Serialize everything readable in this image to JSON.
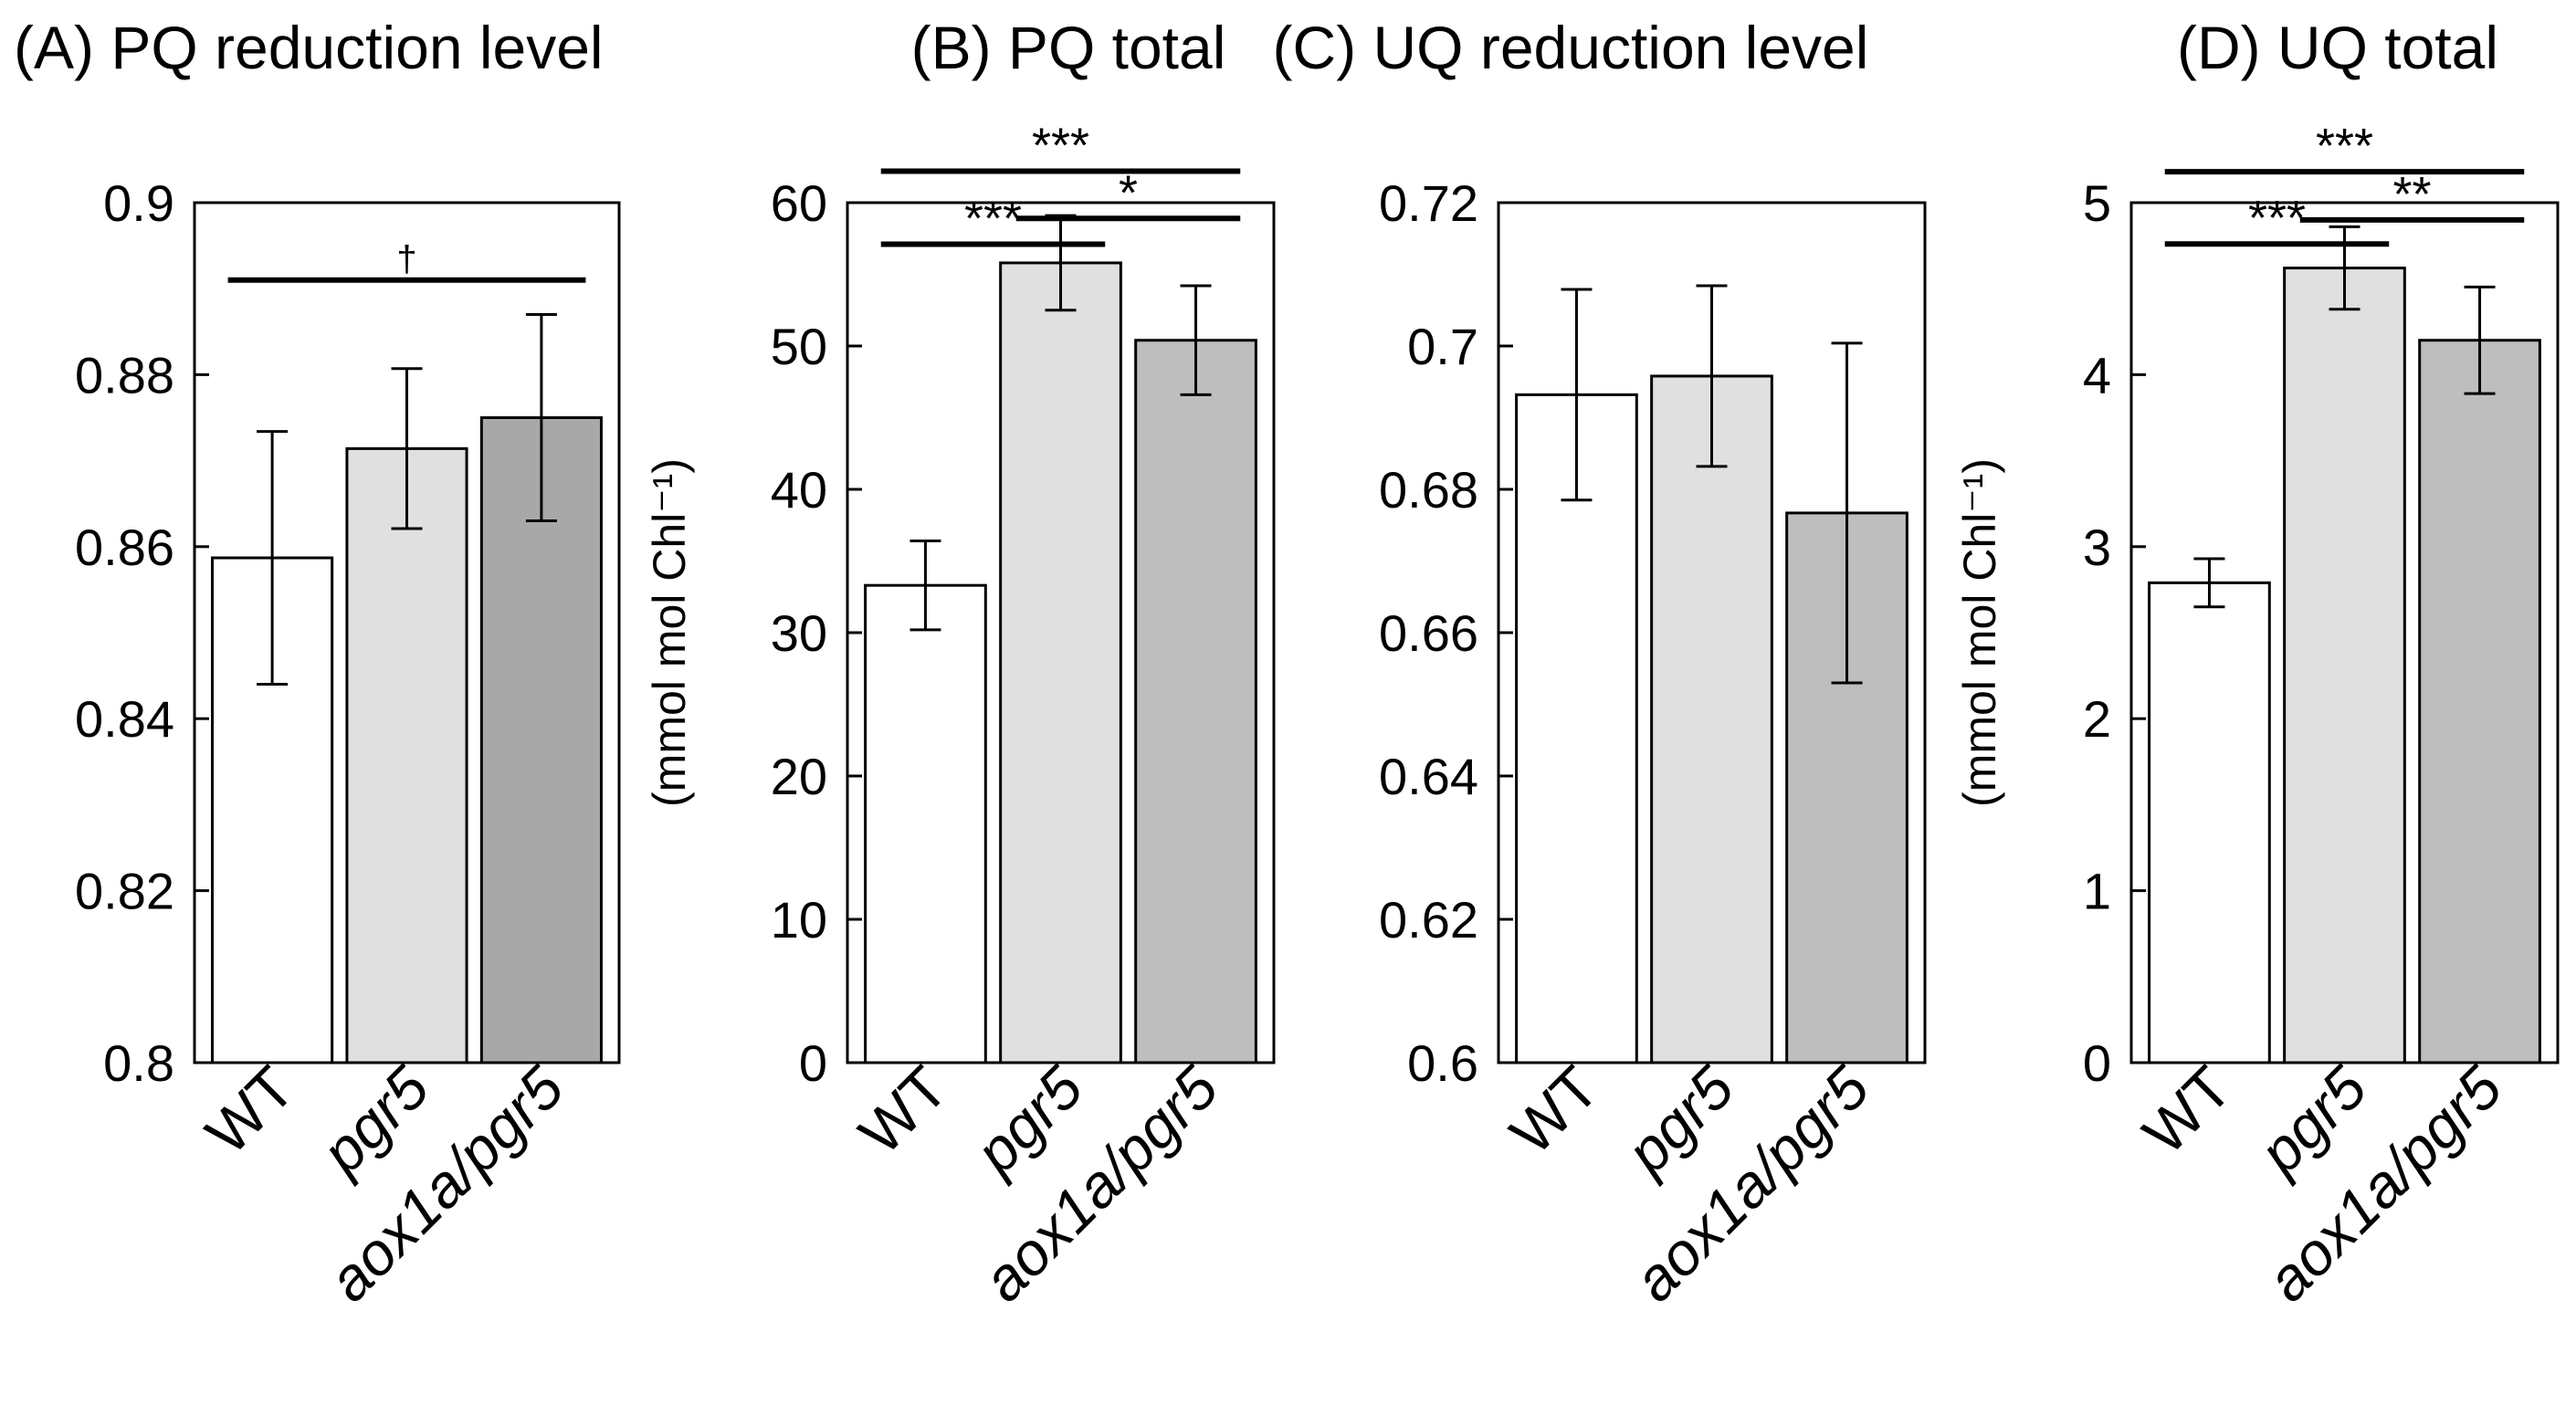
{
  "figure": {
    "background": "#ffffff",
    "bar_stroke": "#000000"
  },
  "chart_data": [
    {
      "id": "A",
      "type": "bar",
      "title": "(A) PQ reduction level",
      "ylabel": "",
      "ylim": [
        0.8,
        0.9
      ],
      "yticks": [
        0.8,
        0.82,
        0.84,
        0.86,
        0.88,
        0.9
      ],
      "ytick_labels": [
        "0.8",
        "0.82",
        "0.84",
        "0.86",
        "0.88",
        "0.9"
      ],
      "categories": [
        "WT",
        "pgr5",
        "aox1a/pgr5"
      ],
      "category_italic": [
        false,
        true,
        true
      ],
      "values": [
        0.8587,
        0.8714,
        0.875
      ],
      "errors": [
        0.0147,
        0.0093,
        0.012
      ],
      "colors": [
        "#ffffff",
        "#e0e0e0",
        "#a8a8a8"
      ],
      "significance": [
        {
          "from": 0,
          "to": 2,
          "label": "†",
          "y": 0.891
        }
      ]
    },
    {
      "id": "B",
      "type": "bar",
      "title": "(B) PQ total",
      "ylabel": "(mmol mol Chl⁻¹)",
      "ylim": [
        0,
        60
      ],
      "yticks": [
        0,
        10,
        20,
        30,
        40,
        50,
        60
      ],
      "ytick_labels": [
        "0",
        "10",
        "20",
        "30",
        "40",
        "50",
        "60"
      ],
      "categories": [
        "WT",
        "pgr5",
        "aox1a/pgr5"
      ],
      "category_italic": [
        false,
        true,
        true
      ],
      "values": [
        33.3,
        55.8,
        50.4
      ],
      "errors": [
        3.1,
        3.3,
        3.8
      ],
      "colors": [
        "#ffffff",
        "#e0e0e0",
        "#bebebe"
      ],
      "significance": [
        {
          "from": 0,
          "to": 1,
          "label": "***",
          "y": 57.1
        },
        {
          "from": 1,
          "to": 2,
          "label": "*",
          "y": 58.9
        },
        {
          "from": 0,
          "to": 2,
          "label": "***",
          "y": 62.2
        }
      ]
    },
    {
      "id": "C",
      "type": "bar",
      "title": "(C) UQ reduction level",
      "ylabel": "",
      "ylim": [
        0.6,
        0.72
      ],
      "yticks": [
        0.6,
        0.62,
        0.64,
        0.66,
        0.68,
        0.7,
        0.72
      ],
      "ytick_labels": [
        "0.6",
        "0.62",
        "0.64",
        "0.66",
        "0.68",
        "0.7",
        "0.72"
      ],
      "categories": [
        "WT",
        "pgr5",
        "aox1a/pgr5"
      ],
      "category_italic": [
        false,
        true,
        true
      ],
      "values": [
        0.6932,
        0.6958,
        0.6767
      ],
      "errors": [
        0.0147,
        0.0126,
        0.0237
      ],
      "colors": [
        "#ffffff",
        "#e0e0e0",
        "#bebebe"
      ],
      "significance": []
    },
    {
      "id": "D",
      "type": "bar",
      "title": "(D) UQ total",
      "ylabel": "(mmol mol Chl⁻¹)",
      "ylim": [
        0,
        5
      ],
      "yticks": [
        0,
        1,
        2,
        3,
        4,
        5
      ],
      "ytick_labels": [
        "0",
        "1",
        "2",
        "3",
        "4",
        "5"
      ],
      "categories": [
        "WT",
        "pgr5",
        "aox1a/pgr5"
      ],
      "category_italic": [
        false,
        true,
        true
      ],
      "values": [
        2.79,
        4.62,
        4.2
      ],
      "errors": [
        0.14,
        0.24,
        0.31
      ],
      "colors": [
        "#ffffff",
        "#e0e0e0",
        "#bebebe"
      ],
      "significance": [
        {
          "from": 0,
          "to": 1,
          "label": "***",
          "y": 4.76
        },
        {
          "from": 1,
          "to": 2,
          "label": "**",
          "y": 4.9
        },
        {
          "from": 0,
          "to": 2,
          "label": "***",
          "y": 5.18
        }
      ]
    }
  ]
}
